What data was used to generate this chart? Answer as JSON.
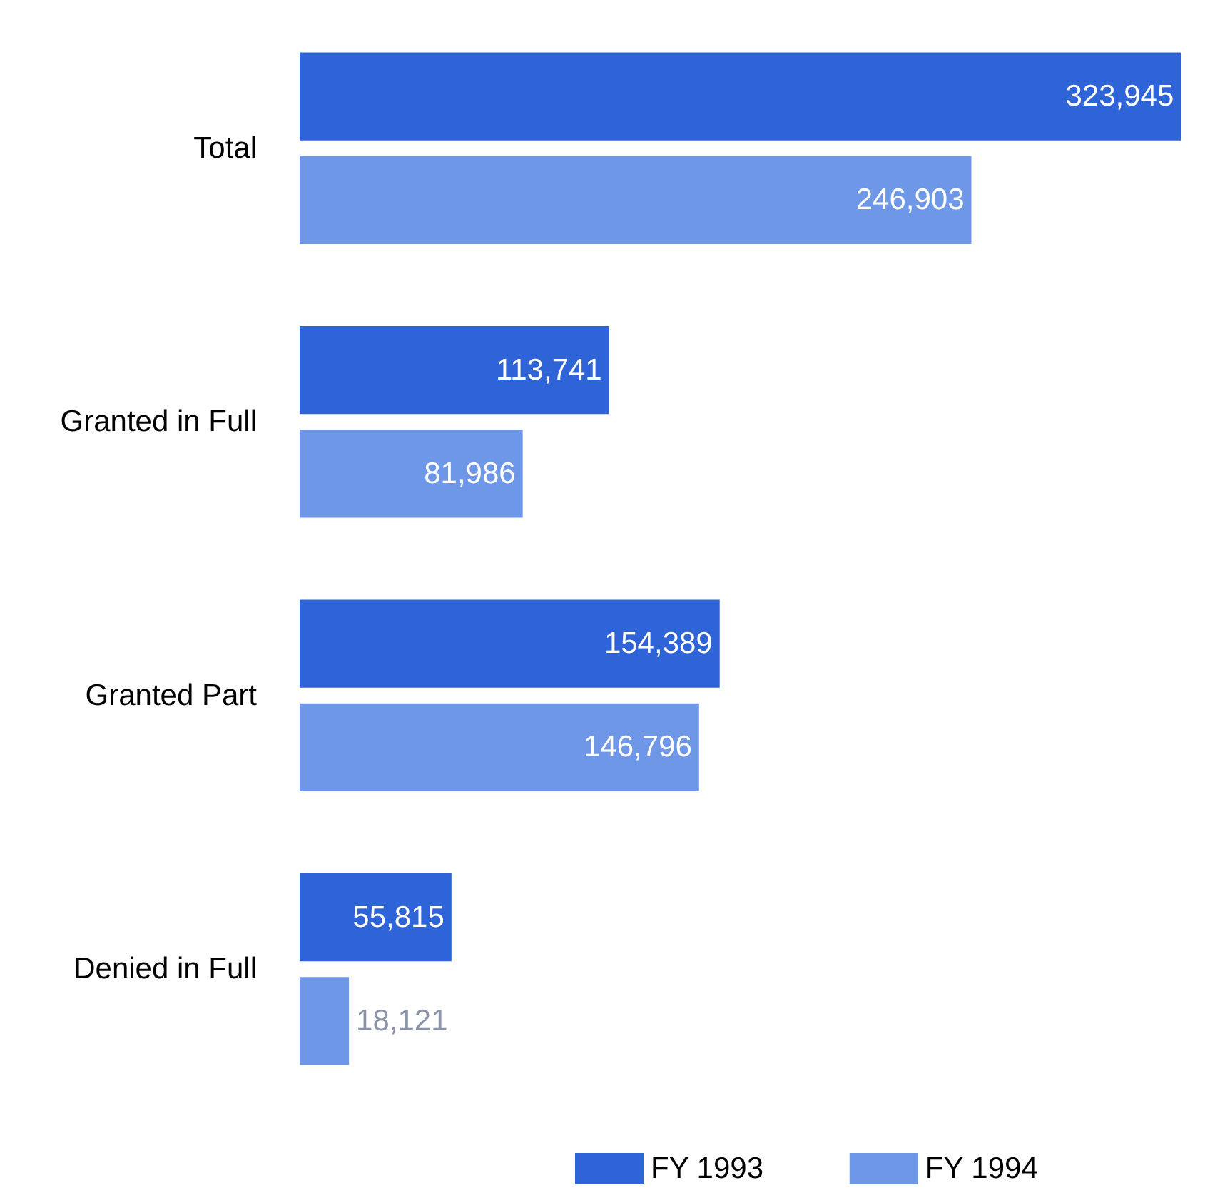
{
  "chart_data": {
    "type": "bar",
    "orientation": "horizontal",
    "categories": [
      "Total",
      "Granted in Full",
      "Granted Part",
      "Denied in Full"
    ],
    "series": [
      {
        "name": "FY 1993",
        "color": "#2f63d8",
        "values": [
          323945,
          113741,
          154389,
          55815
        ],
        "value_labels": [
          "323,945",
          "113,741",
          "154,389",
          "55,815"
        ]
      },
      {
        "name": "FY 1994",
        "color": "#6f97e8",
        "values": [
          246903,
          81986,
          146796,
          18121
        ],
        "value_labels": [
          "246,903",
          "81,986",
          "146,796",
          "18,121"
        ]
      }
    ],
    "legend": "bottom"
  }
}
